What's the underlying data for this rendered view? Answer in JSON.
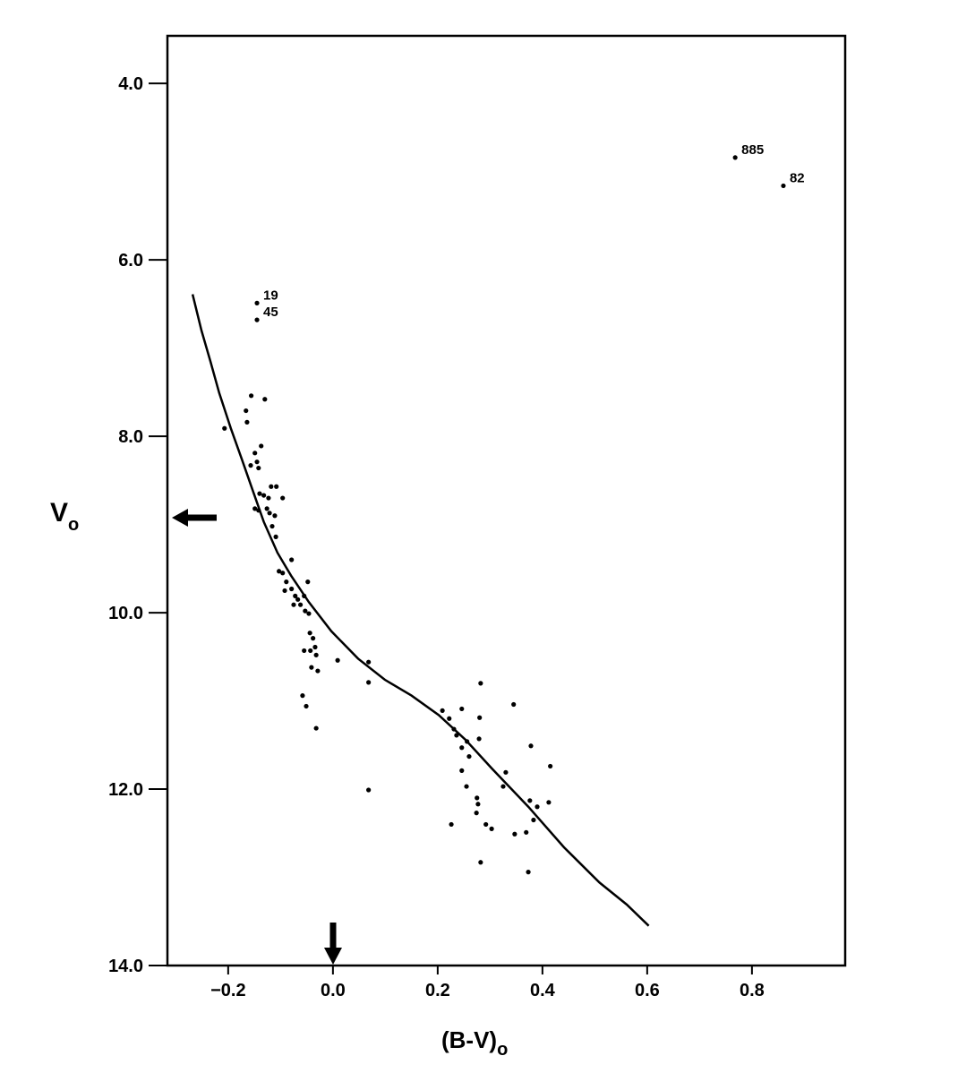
{
  "chart_data": {
    "type": "scatter",
    "xlabel": "(B-V)",
    "xlabel_sub": "o",
    "ylabel": "V",
    "ylabel_sub": "o",
    "xlim": [
      -0.316,
      0.978
    ],
    "ylim": [
      3.46,
      14.0
    ],
    "y_inverted": true,
    "xticks": [
      {
        "value": -0.2,
        "label": "−0.2"
      },
      {
        "value": 0,
        "label": "0.0"
      },
      {
        "value": 0.2,
        "label": "0.2"
      },
      {
        "value": 0.4,
        "label": "0.4"
      },
      {
        "value": 0.6,
        "label": "0.6"
      },
      {
        "value": 0.8,
        "label": "0.8"
      }
    ],
    "yticks": [
      {
        "value": 4,
        "label": "4.0"
      },
      {
        "value": 6,
        "label": "6.0"
      },
      {
        "value": 8,
        "label": "8.0"
      },
      {
        "value": 10,
        "label": "10.0"
      },
      {
        "value": 12,
        "label": "12.0"
      },
      {
        "value": 14,
        "label": "14.0"
      }
    ],
    "color": "#000000",
    "points": {
      "x": [
        -0.207,
        -0.156,
        -0.166,
        -0.164,
        -0.13,
        -0.137,
        -0.149,
        -0.145,
        -0.157,
        -0.142,
        -0.118,
        -0.108,
        -0.14,
        -0.132,
        -0.123,
        -0.096,
        -0.149,
        -0.142,
        -0.126,
        -0.121,
        -0.111,
        -0.116,
        -0.109,
        -0.103,
        -0.096,
        -0.079,
        -0.089,
        -0.092,
        -0.079,
        -0.072,
        -0.067,
        -0.055,
        -0.062,
        -0.075,
        -0.048,
        -0.053,
        -0.046,
        -0.044,
        -0.038,
        -0.034,
        -0.055,
        -0.043,
        -0.032,
        -0.041,
        -0.029,
        -0.058,
        -0.051,
        -0.032,
        0.009,
        0.068,
        0.068,
        0.068,
        0.209,
        0.222,
        0.231,
        0.246,
        0.236,
        0.246,
        0.256,
        0.26,
        0.246,
        0.255,
        0.275,
        0.277,
        0.279,
        0.282,
        0.28,
        0.274,
        0.226,
        0.292,
        0.303,
        0.282,
        0.325,
        0.33,
        0.345,
        0.347,
        0.369,
        0.376,
        0.39,
        0.378,
        0.383,
        0.415,
        0.412,
        0.373
      ],
      "y": [
        7.91,
        7.54,
        7.71,
        7.84,
        7.58,
        8.11,
        8.19,
        8.29,
        8.33,
        8.36,
        8.57,
        8.57,
        8.65,
        8.67,
        8.7,
        8.7,
        8.82,
        8.84,
        8.82,
        8.87,
        8.9,
        9.02,
        9.14,
        9.53,
        9.55,
        9.4,
        9.65,
        9.75,
        9.73,
        9.81,
        9.85,
        9.81,
        9.91,
        9.91,
        9.65,
        9.98,
        10.01,
        10.23,
        10.29,
        10.39,
        10.43,
        10.43,
        10.48,
        10.62,
        10.66,
        10.94,
        11.06,
        11.31,
        10.54,
        10.56,
        10.79,
        12.01,
        11.11,
        11.2,
        11.32,
        11.09,
        11.39,
        11.53,
        11.46,
        11.63,
        11.79,
        11.97,
        12.1,
        12.17,
        11.43,
        10.8,
        11.19,
        12.27,
        12.4,
        12.4,
        12.45,
        12.83,
        11.97,
        11.81,
        11.04,
        12.51,
        12.49,
        12.13,
        12.2,
        11.51,
        12.35,
        11.74,
        12.15,
        12.94
      ]
    },
    "annotated_points": [
      {
        "text": "885",
        "x": 0.768,
        "y": 4.84
      },
      {
        "text": "82",
        "x": 0.86,
        "y": 5.16
      },
      {
        "text": "19",
        "x": -0.145,
        "y": 6.49
      },
      {
        "text": "45",
        "x": -0.145,
        "y": 6.68
      }
    ],
    "curve": {
      "x": [
        -0.268,
        -0.251,
        -0.234,
        -0.217,
        -0.195,
        -0.174,
        -0.154,
        -0.132,
        -0.106,
        -0.08,
        -0.046,
        -0.003,
        0.048,
        0.099,
        0.15,
        0.202,
        0.253,
        0.304,
        0.373,
        0.441,
        0.509,
        0.561,
        0.603
      ],
      "y": [
        6.39,
        6.8,
        7.15,
        7.51,
        7.91,
        8.26,
        8.6,
        8.97,
        9.32,
        9.58,
        9.88,
        10.21,
        10.52,
        10.76,
        10.94,
        11.16,
        11.44,
        11.77,
        12.2,
        12.66,
        13.06,
        13.31,
        13.55
      ]
    }
  }
}
